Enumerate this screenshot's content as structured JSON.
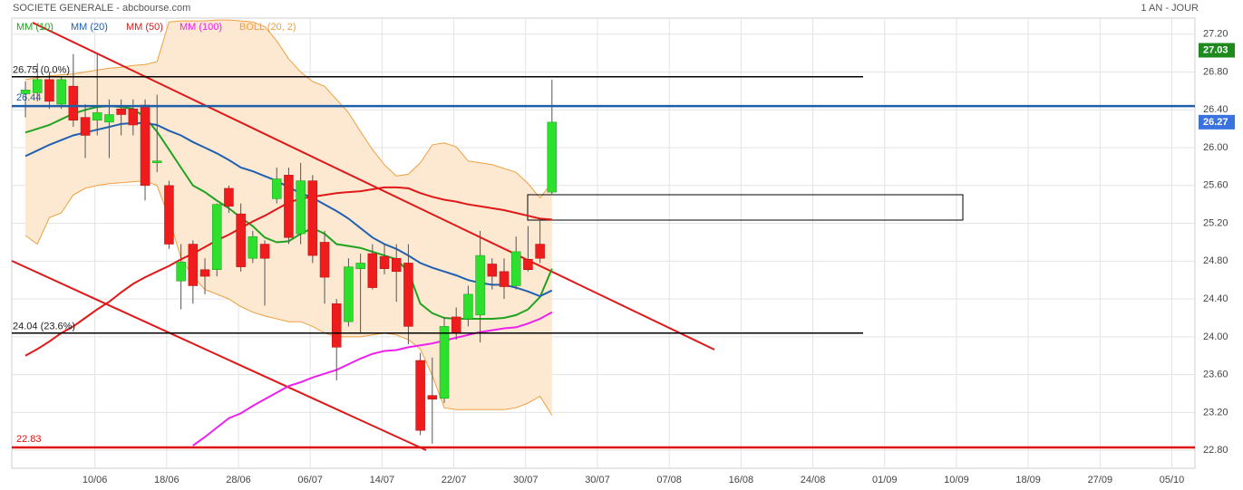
{
  "chart_data": {
    "type": "candlestick",
    "title": "SOCIETE GENERALE - abcbourse.com",
    "period": "1 AN - JOUR",
    "x": [
      0,
      1,
      2,
      3,
      4,
      5,
      6,
      7,
      8,
      9,
      10,
      11,
      12,
      13,
      14,
      15,
      16,
      17,
      18,
      19,
      20,
      21,
      22,
      23,
      24,
      25,
      26,
      27,
      28,
      29,
      30,
      31,
      32,
      33,
      34,
      35,
      36,
      37,
      38,
      39,
      40,
      41,
      42,
      43,
      44
    ],
    "open": [
      26.57,
      26.58,
      26.72,
      26.46,
      26.65,
      26.32,
      26.29,
      26.27,
      26.41,
      26.41,
      26.45,
      25.84,
      25.6,
      24.59,
      24.98,
      24.71,
      24.71,
      25.57,
      25.3,
      24.83,
      24.98,
      25.46,
      25.71,
      25.09,
      25.65,
      25.0,
      24.35,
      24.16,
      24.72,
      24.88,
      24.85,
      24.83,
      24.78,
      23.75,
      23.38,
      23.35,
      24.21,
      24.19,
      24.23,
      24.77,
      24.69,
      24.54,
      24.82,
      24.98,
      25.53
    ],
    "high": [
      26.7,
      26.89,
      26.8,
      26.75,
      26.99,
      26.46,
      26.99,
      26.51,
      26.51,
      26.51,
      26.51,
      26.56,
      25.65,
      24.98,
      25.02,
      24.83,
      25.41,
      25.6,
      25.41,
      25.12,
      25.02,
      25.79,
      25.79,
      25.84,
      25.71,
      25.12,
      24.4,
      24.83,
      24.88,
      24.98,
      24.98,
      24.98,
      24.98,
      23.83,
      23.78,
      24.21,
      24.31,
      24.54,
      25.12,
      24.83,
      24.83,
      25.06,
      25.17,
      25.26,
      26.72
    ],
    "low": [
      26.32,
      26.49,
      26.41,
      26.41,
      26.22,
      25.89,
      26.13,
      25.89,
      26.13,
      26.13,
      25.44,
      25.74,
      24.93,
      24.29,
      24.35,
      24.45,
      24.64,
      25.31,
      24.69,
      24.78,
      24.33,
      25.41,
      24.98,
      24.98,
      24.78,
      24.35,
      23.54,
      24.11,
      24.04,
      24.5,
      24.66,
      24.37,
      23.92,
      22.96,
      22.87,
      23.3,
      23.97,
      24.11,
      23.94,
      24.5,
      24.4,
      24.5,
      24.69,
      24.78,
      25.5
    ],
    "close": [
      26.61,
      26.72,
      26.49,
      26.72,
      26.29,
      26.13,
      26.37,
      26.35,
      26.35,
      26.24,
      25.6,
      25.86,
      24.98,
      24.79,
      24.54,
      24.64,
      25.4,
      25.38,
      24.74,
      25.06,
      24.83,
      25.67,
      25.05,
      25.65,
      24.86,
      24.63,
      23.89,
      24.74,
      24.78,
      24.52,
      24.72,
      24.69,
      24.11,
      23.01,
      23.34,
      24.11,
      24.04,
      24.45,
      24.86,
      24.64,
      24.53,
      24.9,
      24.71,
      24.83,
      26.27
    ],
    "up_color": "#2ee02e",
    "down_color": "#ee1c1c",
    "wick_color": "#555555",
    "xlim": [
      -1.14,
      97.73
    ],
    "ylim": [
      22.61,
      27.37
    ],
    "xticks": [
      {
        "value": 5.8,
        "label": "10/06"
      },
      {
        "value": 11.8,
        "label": "18/06"
      },
      {
        "value": 17.8,
        "label": "28/06"
      },
      {
        "value": 23.8,
        "label": "06/07"
      },
      {
        "value": 29.8,
        "label": "14/07"
      },
      {
        "value": 35.8,
        "label": "22/07"
      },
      {
        "value": 41.8,
        "label": "30/07"
      },
      {
        "value": 47.8,
        "label": "30/07"
      },
      {
        "value": 53.8,
        "label": "07/08"
      },
      {
        "value": 59.8,
        "label": "16/08"
      },
      {
        "value": 65.8,
        "label": "24/08"
      },
      {
        "value": 71.8,
        "label": "01/09"
      },
      {
        "value": 77.8,
        "label": "10/09"
      },
      {
        "value": 83.8,
        "label": "18/09"
      },
      {
        "value": 89.8,
        "label": "27/09"
      },
      {
        "value": 95.8,
        "label": "05/10"
      }
    ],
    "yticks": [
      {
        "value": 22.8,
        "label": "22.80"
      },
      {
        "value": 23.2,
        "label": "23.20"
      },
      {
        "value": 23.6,
        "label": "23.60"
      },
      {
        "value": 24,
        "label": "24.00"
      },
      {
        "value": 24.4,
        "label": "24.40"
      },
      {
        "value": 24.8,
        "label": "24.80"
      },
      {
        "value": 25.2,
        "label": "25.20"
      },
      {
        "value": 25.6,
        "label": "25.60"
      },
      {
        "value": 26,
        "label": "26.00"
      },
      {
        "value": 26.4,
        "label": "26.40"
      },
      {
        "value": 26.8,
        "label": "26.80"
      },
      {
        "value": 27.2,
        "label": "27.20"
      }
    ],
    "grid": true,
    "series": [
      {
        "name": "MM (10)",
        "color": "#1fa31f",
        "values": [
          26.16,
          26.2,
          26.24,
          26.3,
          26.36,
          26.4,
          26.43,
          26.44,
          26.43,
          26.41,
          26.32,
          26.17,
          25.98,
          25.79,
          25.6,
          25.53,
          25.44,
          25.36,
          25.26,
          25.17,
          25.05,
          25.0,
          25.01,
          25.09,
          25.15,
          25.09,
          24.98,
          24.96,
          24.94,
          24.9,
          24.86,
          24.82,
          24.69,
          24.35,
          24.25,
          24.2,
          24.19,
          24.19,
          24.19,
          24.19,
          24.2,
          24.23,
          24.29,
          24.42,
          24.72
        ]
      },
      {
        "name": "MM (20)",
        "color": "#2060b0",
        "values": [
          25.91,
          25.97,
          26.03,
          26.08,
          26.13,
          26.16,
          26.19,
          26.22,
          26.25,
          26.26,
          26.26,
          26.24,
          26.18,
          26.13,
          26.06,
          26.0,
          25.94,
          25.87,
          25.79,
          25.75,
          25.7,
          25.65,
          25.58,
          25.52,
          25.47,
          25.4,
          25.33,
          25.25,
          25.15,
          25.05,
          24.98,
          24.93,
          24.86,
          24.78,
          24.73,
          24.69,
          24.65,
          24.6,
          24.57,
          24.55,
          24.55,
          24.52,
          24.48,
          24.43,
          24.49
        ]
      },
      {
        "name": "MM (50)",
        "color": "#e01818",
        "values": [
          23.8,
          23.87,
          23.95,
          24.04,
          24.11,
          24.2,
          24.29,
          24.37,
          24.47,
          24.56,
          24.63,
          24.69,
          24.75,
          24.82,
          24.88,
          24.95,
          25.02,
          25.08,
          25.15,
          25.22,
          25.28,
          25.35,
          25.42,
          25.46,
          25.48,
          25.5,
          25.52,
          25.53,
          25.54,
          25.56,
          25.58,
          25.58,
          25.57,
          25.52,
          25.48,
          25.45,
          25.43,
          25.4,
          25.38,
          25.36,
          25.34,
          25.31,
          25.28,
          25.25,
          25.24
        ]
      },
      {
        "name": "MM (100)",
        "color": "#ee20ee",
        "values": [
          null,
          null,
          null,
          null,
          null,
          null,
          null,
          null,
          null,
          null,
          null,
          null,
          null,
          null,
          22.85,
          22.94,
          23.04,
          23.14,
          23.19,
          23.27,
          23.34,
          23.41,
          23.48,
          23.52,
          23.57,
          23.61,
          23.65,
          23.71,
          23.77,
          23.82,
          23.85,
          23.86,
          23.89,
          23.91,
          23.93,
          23.96,
          23.99,
          24.02,
          24.05,
          24.07,
          24.09,
          24.1,
          24.14,
          24.19,
          24.26
        ]
      }
    ],
    "bollinger": {
      "name": "BOLL (20, 2)",
      "color": "#f0a040",
      "fill": "#fde8d2",
      "upper": [
        26.72,
        26.74,
        26.76,
        26.77,
        26.78,
        26.8,
        26.82,
        26.84,
        26.85,
        26.87,
        26.88,
        26.91,
        27.33,
        27.34,
        27.34,
        27.34,
        27.35,
        27.35,
        27.34,
        27.33,
        27.28,
        27.13,
        26.94,
        26.8,
        26.7,
        26.65,
        26.51,
        26.37,
        26.17,
        25.98,
        25.82,
        25.7,
        25.72,
        25.84,
        26.03,
        26.05,
        26.01,
        25.86,
        25.84,
        25.82,
        25.78,
        25.74,
        25.62,
        25.47,
        25.63
      ],
      "lower": [
        25.07,
        24.98,
        25.26,
        25.31,
        25.5,
        25.57,
        25.6,
        25.62,
        25.63,
        25.64,
        25.65,
        25.6,
        25.26,
        24.83,
        24.64,
        24.5,
        24.45,
        24.4,
        24.32,
        24.26,
        24.22,
        24.19,
        24.16,
        24.16,
        24.11,
        24.04,
        24.0,
        24.0,
        24.0,
        24.02,
        24.04,
        24.02,
        23.97,
        23.87,
        23.59,
        23.25,
        23.23,
        23.23,
        23.23,
        23.23,
        23.23,
        23.25,
        23.3,
        23.37,
        23.17
      ]
    },
    "levels": [
      {
        "value": 26.75,
        "label": "26.75 (0.0%)",
        "color": "#000000"
      },
      {
        "value": 24.04,
        "label": "24.04 (23.6%)",
        "color": "#000000"
      }
    ],
    "price_lines": [
      {
        "value": 26.44,
        "color": "#1f5fa8"
      },
      {
        "value": 22.83,
        "color": "#e01010"
      }
    ],
    "badges": [
      {
        "value": 27.03,
        "color": "#1e8a1e"
      },
      {
        "value": 26.27,
        "color": "#3a72e0"
      }
    ]
  }
}
